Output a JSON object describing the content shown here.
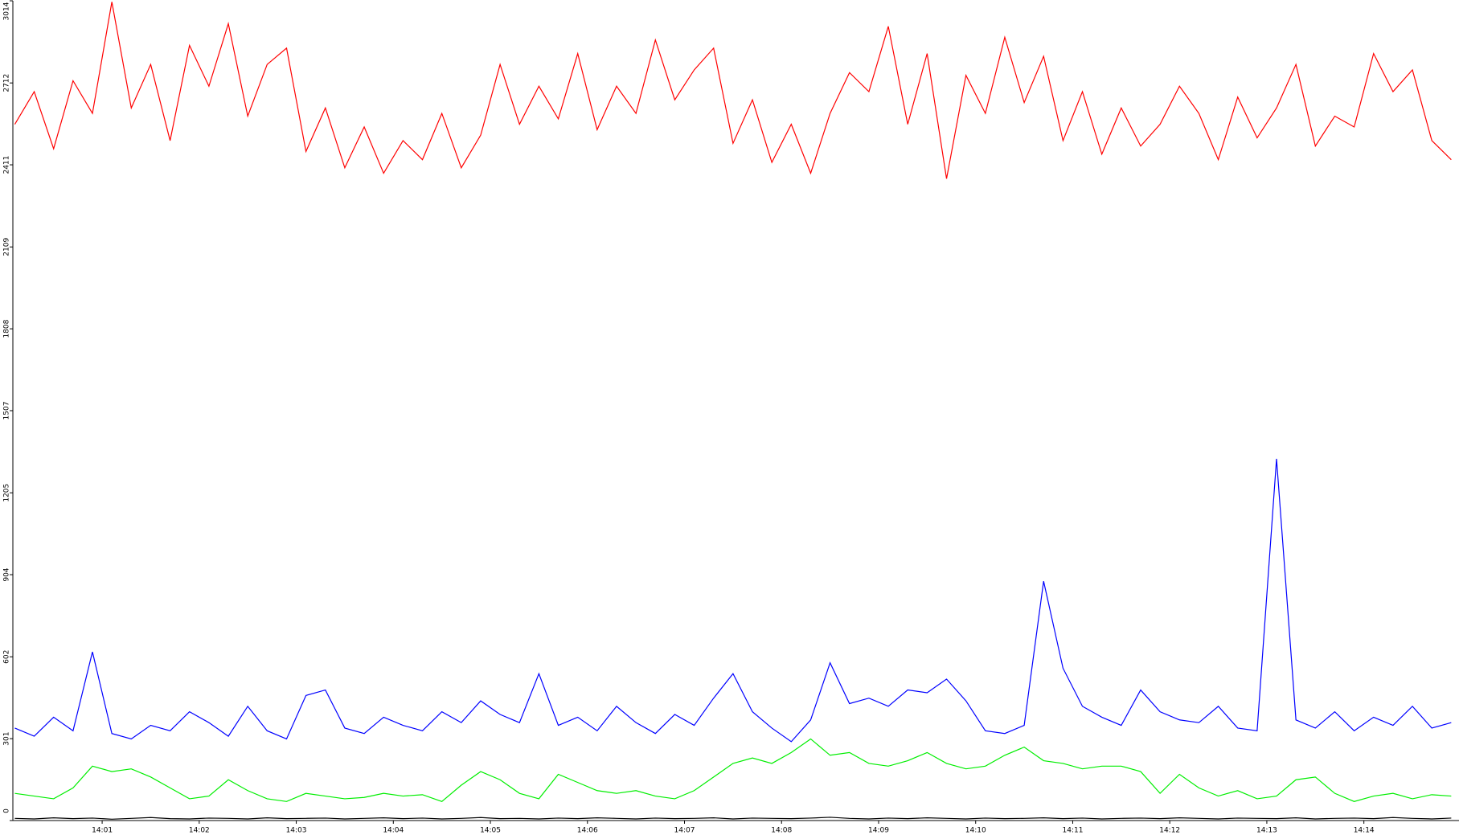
{
  "chart_data": {
    "type": "line",
    "x": [
      0.1,
      0.3,
      0.5,
      0.7,
      0.9,
      1.1,
      1.3,
      1.5,
      1.7,
      1.9,
      2.1,
      2.3,
      2.5,
      2.7,
      2.9,
      3.1,
      3.3,
      3.5,
      3.7,
      3.9,
      4.1,
      4.3,
      4.5,
      4.7,
      4.9,
      5.1,
      5.3,
      5.5,
      5.7,
      5.9,
      6.1,
      6.3,
      6.5,
      6.7,
      6.9,
      7.1,
      7.3,
      7.5,
      7.7,
      7.9,
      8.1,
      8.3,
      8.5,
      8.7,
      8.9,
      9.1,
      9.3,
      9.5,
      9.7,
      9.9,
      10.1,
      10.3,
      10.5,
      10.7,
      10.9,
      11.1,
      11.3,
      11.5,
      11.7,
      11.9,
      12.1,
      12.3,
      12.5,
      12.7,
      12.9,
      13.1,
      13.3,
      13.5,
      13.7,
      13.9,
      14.1,
      14.3,
      14.5,
      14.7,
      14.9
    ],
    "series": [
      {
        "color": "#ff0000",
        "values": [
          2560,
          2680,
          2470,
          2720,
          2600,
          3010,
          2620,
          2780,
          2500,
          2850,
          2700,
          2930,
          2590,
          2780,
          2840,
          2460,
          2620,
          2400,
          2550,
          2380,
          2500,
          2430,
          2600,
          2400,
          2520,
          2780,
          2560,
          2700,
          2580,
          2820,
          2540,
          2700,
          2600,
          2870,
          2650,
          2760,
          2840,
          2490,
          2650,
          2420,
          2560,
          2380,
          2600,
          2750,
          2680,
          2920,
          2560,
          2820,
          2360,
          2740,
          2600,
          2880,
          2640,
          2810,
          2500,
          2680,
          2450,
          2620,
          2480,
          2560,
          2700,
          2600,
          2430,
          2660,
          2510,
          2620,
          2780,
          2480,
          2590,
          2550,
          2820,
          2680,
          2760,
          2500,
          2430
        ]
      },
      {
        "color": "#0000ff",
        "values": [
          340,
          310,
          380,
          330,
          620,
          320,
          300,
          350,
          330,
          400,
          360,
          310,
          420,
          330,
          300,
          460,
          480,
          340,
          320,
          380,
          350,
          330,
          400,
          360,
          440,
          390,
          360,
          540,
          350,
          380,
          330,
          420,
          360,
          320,
          390,
          350,
          450,
          540,
          400,
          340,
          290,
          370,
          580,
          430,
          450,
          420,
          480,
          470,
          520,
          440,
          330,
          320,
          350,
          880,
          560,
          420,
          380,
          350,
          480,
          400,
          370,
          360,
          420,
          340,
          330,
          1330,
          370,
          340,
          400,
          330,
          380,
          350,
          420,
          340,
          360
        ]
      },
      {
        "color": "#00ee00",
        "values": [
          100,
          90,
          80,
          120,
          200,
          180,
          190,
          160,
          120,
          80,
          90,
          150,
          110,
          80,
          70,
          100,
          90,
          80,
          85,
          100,
          90,
          95,
          70,
          130,
          180,
          150,
          100,
          80,
          170,
          140,
          110,
          100,
          110,
          90,
          80,
          110,
          160,
          210,
          230,
          210,
          250,
          300,
          240,
          250,
          210,
          200,
          220,
          250,
          210,
          190,
          200,
          240,
          270,
          220,
          210,
          190,
          200,
          200,
          180,
          100,
          170,
          120,
          90,
          110,
          80,
          90,
          150,
          160,
          100,
          70,
          90,
          100,
          80,
          95,
          90
        ]
      },
      {
        "color": "#000000",
        "values": [
          8,
          6,
          10,
          7,
          9,
          5,
          8,
          11,
          7,
          6,
          9,
          8,
          6,
          10,
          7,
          8,
          9,
          6,
          8,
          10,
          7,
          9,
          6,
          8,
          11,
          7,
          8,
          6,
          9,
          7,
          10,
          8,
          6,
          9,
          7,
          8,
          10,
          6,
          9,
          8,
          7,
          9,
          12,
          8,
          6,
          9,
          7,
          10,
          8,
          6,
          9,
          7,
          8,
          10,
          7,
          9,
          6,
          8,
          9,
          7,
          10,
          8,
          6,
          9,
          8,
          7,
          10,
          6,
          8,
          9,
          7,
          11,
          8,
          6,
          9
        ]
      }
    ],
    "xlim": [
      0.08,
      14.98
    ],
    "xticks": [
      {
        "value": 1,
        "label": "14:01"
      },
      {
        "value": 2,
        "label": "14:02"
      },
      {
        "value": 3,
        "label": "14:03"
      },
      {
        "value": 4,
        "label": "14:04"
      },
      {
        "value": 5,
        "label": "14:05"
      },
      {
        "value": 6,
        "label": "14:06"
      },
      {
        "value": 7,
        "label": "14:07"
      },
      {
        "value": 8,
        "label": "14:08"
      },
      {
        "value": 9,
        "label": "14:09"
      },
      {
        "value": 10,
        "label": "14:10"
      },
      {
        "value": 11,
        "label": "14:11"
      },
      {
        "value": 12,
        "label": "14:12"
      },
      {
        "value": 13,
        "label": "14:13"
      },
      {
        "value": 14,
        "label": "14:14"
      }
    ],
    "ylim": [
      0,
      3014
    ],
    "yticks": [
      0,
      301,
      602,
      904,
      1205,
      1507,
      1808,
      2109,
      2411,
      2712,
      3014
    ],
    "grid": false
  }
}
